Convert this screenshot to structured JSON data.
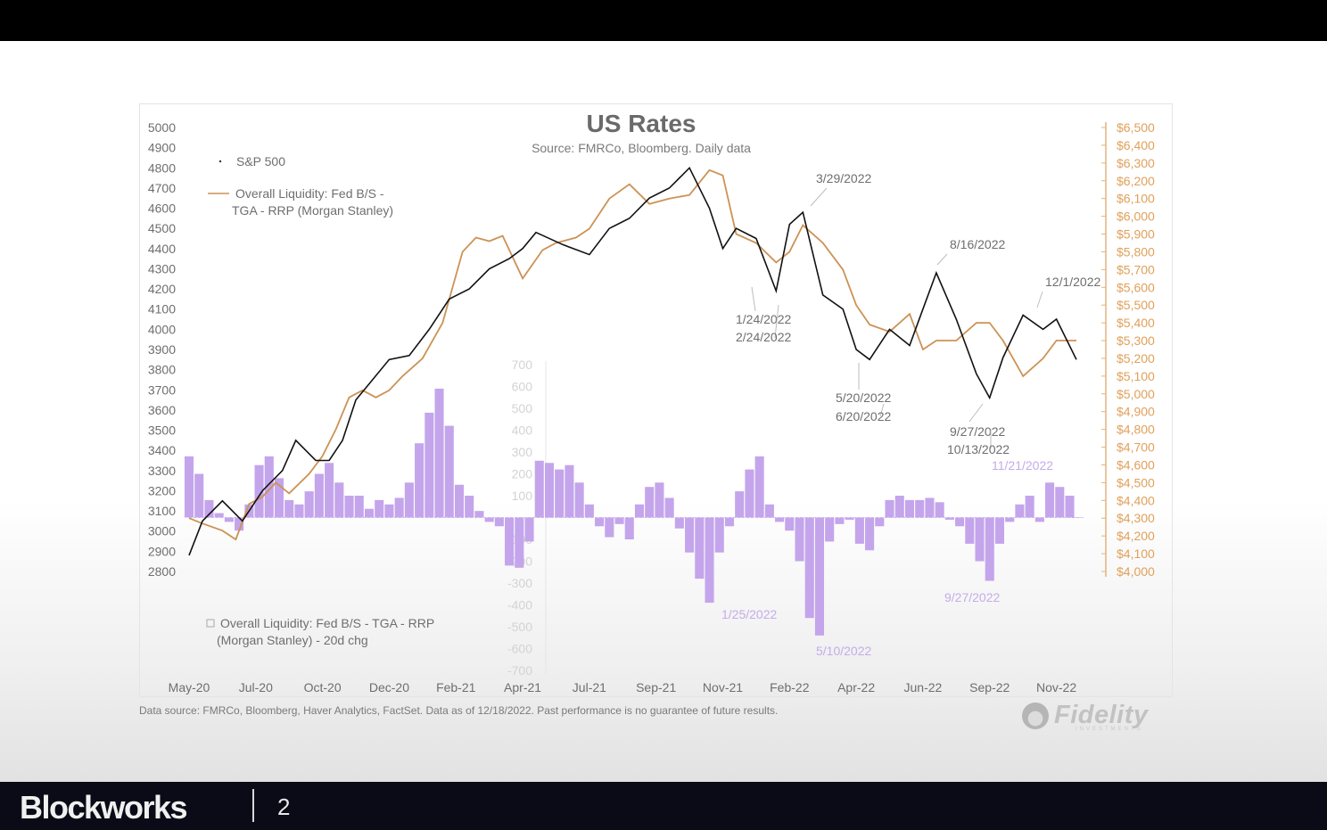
{
  "chart_data": {
    "type": "line",
    "title": "US Rates",
    "subtitle": "Source: FMRCo, Bloomberg.  Daily data",
    "x_ticks": [
      "May-20",
      "Jul-20",
      "Oct-20",
      "Dec-20",
      "Feb-21",
      "Apr-21",
      "Jul-21",
      "Sep-21",
      "Nov-21",
      "Feb-22",
      "Apr-22",
      "Jun-22",
      "Sep-22",
      "Nov-22"
    ],
    "left_axis": {
      "ylim": [
        2800,
        5000
      ],
      "ticks": [
        "5000",
        "4900",
        "4800",
        "4700",
        "4600",
        "4500",
        "4400",
        "4300",
        "4200",
        "4100",
        "4000",
        "3900",
        "3800",
        "3700",
        "3600",
        "3500",
        "3400",
        "3300",
        "3200",
        "3100",
        "3000",
        "2900",
        "2800"
      ]
    },
    "right_axis": {
      "ylim": [
        4000,
        6500
      ],
      "ticks": [
        "$6,500",
        "$6,400",
        "$6,300",
        "$6,200",
        "$6,100",
        "$6,000",
        "$5,900",
        "$5,800",
        "$5,700",
        "$5,600",
        "$5,500",
        "$5,400",
        "$5,300",
        "$5,200",
        "$5,100",
        "$5,000",
        "$4,900",
        "$4,800",
        "$4,700",
        "$4,600",
        "$4,500",
        "$4,400",
        "$4,300",
        "$4,200",
        "$4,100",
        "$4,000"
      ]
    },
    "bar_axis": {
      "ylim": [
        -700,
        700
      ],
      "ticks": [
        "700",
        "600",
        "500",
        "400",
        "300",
        "200",
        "100",
        "",
        "-100",
        "-200",
        "-300",
        "-400",
        "-500",
        "-600",
        "-700"
      ]
    },
    "legend": {
      "sp500": "S&P 500",
      "liquidity_line_1": "Overall Liquidity: Fed B/S -",
      "liquidity_line_2": "TGA - RRP (Morgan Stanley)",
      "change_line_1": "Overall Liquidity: Fed B/S - TGA - RRP",
      "change_line_2": "(Morgan Stanley) - 20d chg"
    },
    "series": [
      {
        "name": "S&P 500",
        "axis": "left",
        "color": "#111111",
        "x": [
          0,
          0.2,
          0.5,
          0.8,
          1.1,
          1.4,
          1.6,
          1.9,
          2.1,
          2.3,
          2.5,
          2.7,
          3.0,
          3.3,
          3.6,
          3.9,
          4.2,
          4.5,
          4.8,
          5.0,
          5.2,
          5.6,
          6.0,
          6.3,
          6.6,
          6.9,
          7.2,
          7.5,
          7.8,
          8.0,
          8.2,
          8.5,
          8.8,
          9.0,
          9.2,
          9.5,
          9.8,
          10.0,
          10.2,
          10.5,
          10.8,
          11.0,
          11.2,
          11.5,
          11.8,
          12.0,
          12.2,
          12.5,
          12.8,
          13.0,
          13.3
        ],
        "y": [
          2880,
          3050,
          3150,
          3050,
          3200,
          3300,
          3450,
          3350,
          3350,
          3450,
          3650,
          3730,
          3850,
          3870,
          4000,
          4150,
          4200,
          4300,
          4350,
          4400,
          4480,
          4420,
          4370,
          4500,
          4550,
          4650,
          4700,
          4800,
          4600,
          4400,
          4500,
          4450,
          4190,
          4520,
          4580,
          4170,
          4100,
          3900,
          3850,
          4000,
          3920,
          4100,
          4280,
          4050,
          3780,
          3660,
          3860,
          4070,
          4000,
          4050,
          3850
        ]
      },
      {
        "name": "Overall Liquidity: Fed B/S - TGA - RRP (Morgan Stanley)",
        "axis": "right",
        "color": "#cc9255",
        "x": [
          0,
          0.2,
          0.5,
          0.7,
          0.9,
          1.1,
          1.3,
          1.5,
          1.8,
          2.0,
          2.2,
          2.4,
          2.6,
          2.8,
          3.0,
          3.2,
          3.5,
          3.8,
          4.1,
          4.3,
          4.5,
          4.7,
          5.0,
          5.3,
          5.5,
          5.8,
          6.0,
          6.3,
          6.6,
          6.9,
          7.2,
          7.5,
          7.8,
          8.0,
          8.2,
          8.5,
          8.8,
          9.0,
          9.2,
          9.5,
          9.8,
          10.0,
          10.2,
          10.5,
          10.8,
          11.0,
          11.2,
          11.5,
          11.8,
          12.0,
          12.2,
          12.5,
          12.8,
          13.0,
          13.3
        ],
        "y": [
          4300,
          4270,
          4230,
          4180,
          4380,
          4420,
          4500,
          4440,
          4550,
          4650,
          4800,
          4980,
          5020,
          4980,
          5020,
          5100,
          5200,
          5400,
          5800,
          5880,
          5860,
          5890,
          5650,
          5810,
          5850,
          5880,
          5930,
          6100,
          6180,
          6070,
          6100,
          6120,
          6260,
          6230,
          5900,
          5850,
          5740,
          5800,
          5950,
          5850,
          5700,
          5500,
          5390,
          5350,
          5450,
          5250,
          5300,
          5300,
          5400,
          5400,
          5300,
          5100,
          5200,
          5300,
          5300
        ]
      },
      {
        "name": "Overall Liquidity: Fed B/S - TGA - RRP (Morgan Stanley) - 20d chg",
        "axis": "bar",
        "type": "bar",
        "color": "#c4a5ec",
        "x": [
          0,
          0.15,
          0.3,
          0.45,
          0.6,
          0.75,
          0.9,
          1.05,
          1.2,
          1.35,
          1.5,
          1.65,
          1.8,
          1.95,
          2.1,
          2.25,
          2.4,
          2.55,
          2.7,
          2.85,
          3.0,
          3.15,
          3.3,
          3.45,
          3.6,
          3.75,
          3.9,
          4.05,
          4.2,
          4.35,
          4.5,
          4.65,
          4.8,
          4.95,
          5.1,
          5.25,
          5.4,
          5.55,
          5.7,
          5.85,
          6.0,
          6.15,
          6.3,
          6.45,
          6.6,
          6.75,
          6.9,
          7.05,
          7.2,
          7.35,
          7.5,
          7.65,
          7.8,
          7.95,
          8.1,
          8.25,
          8.4,
          8.55,
          8.7,
          8.85,
          9.0,
          9.15,
          9.3,
          9.45,
          9.6,
          9.75,
          9.9,
          10.05,
          10.2,
          10.35,
          10.5,
          10.65,
          10.8,
          10.95,
          11.1,
          11.25,
          11.4,
          11.55,
          11.7,
          11.85,
          12.0,
          12.15,
          12.3,
          12.45,
          12.6,
          12.75,
          12.9,
          13.05,
          13.2,
          13.3
        ],
        "y": [
          280,
          200,
          80,
          20,
          -20,
          -60,
          60,
          240,
          280,
          180,
          80,
          60,
          120,
          200,
          250,
          160,
          100,
          100,
          40,
          80,
          60,
          90,
          160,
          340,
          480,
          590,
          420,
          150,
          100,
          30,
          -20,
          -40,
          -220,
          -230,
          -110,
          260,
          250,
          220,
          240,
          160,
          60,
          -40,
          -90,
          -30,
          -100,
          60,
          140,
          160,
          90,
          -50,
          -160,
          -280,
          -390,
          -160,
          -40,
          120,
          220,
          280,
          60,
          -20,
          -60,
          -200,
          -460,
          -540,
          -110,
          -30,
          -10,
          -120,
          -150,
          -40,
          80,
          100,
          80,
          80,
          90,
          70,
          -10,
          -40,
          -120,
          -200,
          -290,
          -120,
          -20,
          60,
          100,
          -20,
          160,
          140,
          100,
          0
        ]
      }
    ],
    "annotations": [
      "3/29/2022",
      "1/24/2022",
      "2/24/2022",
      "8/16/2022",
      "12/1/2022",
      "5/20/2022",
      "6/20/2022",
      "9/27/2022",
      "10/13/2022"
    ],
    "bar_annotations": [
      "11/21/2022",
      "1/25/2022",
      "5/10/2022",
      "9/27/2022"
    ]
  },
  "footer": {
    "note": "Data source: FMRCo, Bloomberg, Haver Analytics, FactSet. Data as of 12/18/2022. Past performance is no guarantee of future results.",
    "logo_text": "Fidelity",
    "logo_sub": "INVESTMENTS"
  },
  "presentation": {
    "brand": "Blockworks",
    "page_number": "2"
  }
}
